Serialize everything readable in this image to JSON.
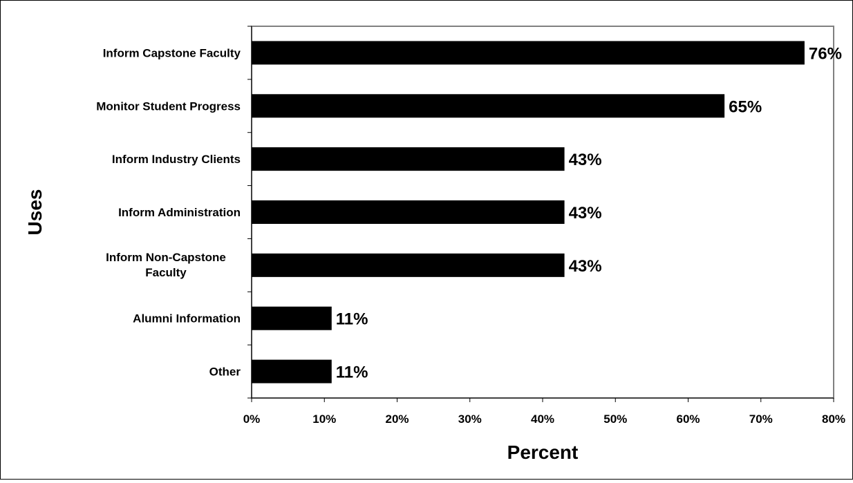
{
  "chart_data": {
    "type": "bar",
    "orientation": "horizontal",
    "categories": [
      "Inform Capstone Faculty",
      "Monitor Student Progress",
      "Inform Industry Clients",
      "Inform Administration",
      "Inform Non-Capstone Faculty",
      "Alumni Information",
      "Other"
    ],
    "values": [
      76,
      65,
      43,
      43,
      43,
      11,
      11
    ],
    "data_labels": [
      "76%",
      "65%",
      "43%",
      "43%",
      "43%",
      "11%",
      "11%"
    ],
    "xlabel": "Percent",
    "ylabel": "Uses",
    "xlim": [
      0,
      80
    ],
    "x_ticks": [
      "0%",
      "10%",
      "20%",
      "30%",
      "40%",
      "50%",
      "60%",
      "70%",
      "80%"
    ],
    "grid": false,
    "legend": "none",
    "bar_color": "#000000",
    "plot_border_color": "#808080"
  }
}
